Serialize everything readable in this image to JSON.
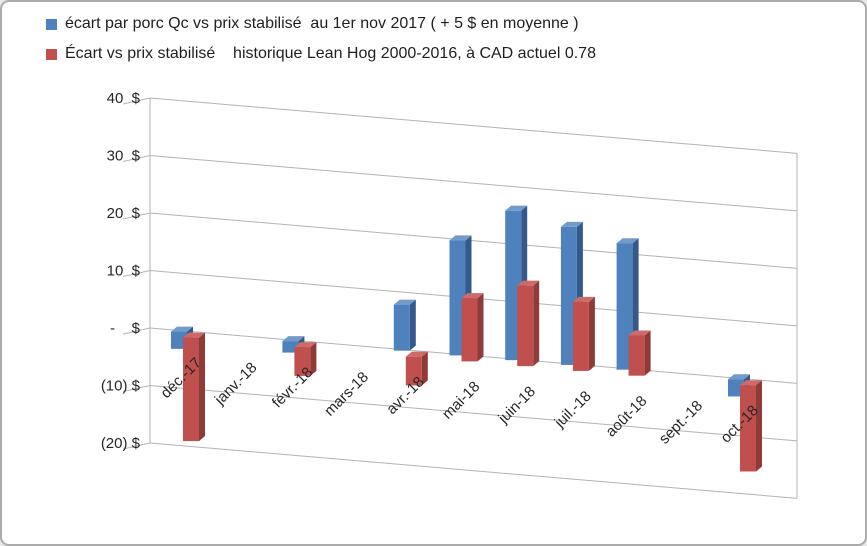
{
  "colors": {
    "background": "#FFFFFF",
    "border": "#ABABAB",
    "grid": "#B3B3B3",
    "axis_text": "#262626",
    "series_blue": "#4F81BD",
    "series_red": "#C0504D"
  },
  "chart_data": {
    "type": "bar",
    "style": "3d-clustered-column",
    "title": "",
    "xlabel": "",
    "ylabel": "",
    "ylim": [
      -20,
      40
    ],
    "ytick_step": 10,
    "grid": true,
    "legend_position": "top-left",
    "categories": [
      "déc.-17",
      "janv.-18",
      "févr.-18",
      "mars-18",
      "avr.-18",
      "mai-18",
      "juin-18",
      "juil.-18",
      "août-18",
      "sept.-18",
      "oct.-18"
    ],
    "series": [
      {
        "name": "écart par porc Qc vs prix stabilisé  au 1er nov 2017 ( + 5 $ en moyenne )",
        "color": "#4F81BD",
        "color_side": "#36598C",
        "color_top": "#729ACA",
        "values": [
          -3,
          null,
          -2,
          null,
          8,
          20,
          26,
          24,
          22,
          null,
          -3
        ]
      },
      {
        "name": "Écart vs prix stabilisé    historique Lean Hog 2000-2016, à CAD actuel 0.78",
        "color": "#C0504D",
        "color_side": "#8E3B39",
        "color_top": "#CD6B69",
        "values": [
          -18,
          null,
          -5,
          null,
          -5,
          11,
          14,
          12,
          7,
          null,
          -15
        ]
      }
    ],
    "yticks": [
      {
        "value": 40,
        "label": "40  $"
      },
      {
        "value": 30,
        "label": "30  $"
      },
      {
        "value": 20,
        "label": "20  $"
      },
      {
        "value": 10,
        "label": "10  $"
      },
      {
        "value": 0,
        "label": " -    $"
      },
      {
        "value": -10,
        "label": "(10) $"
      },
      {
        "value": -20,
        "label": "(20) $"
      }
    ]
  }
}
